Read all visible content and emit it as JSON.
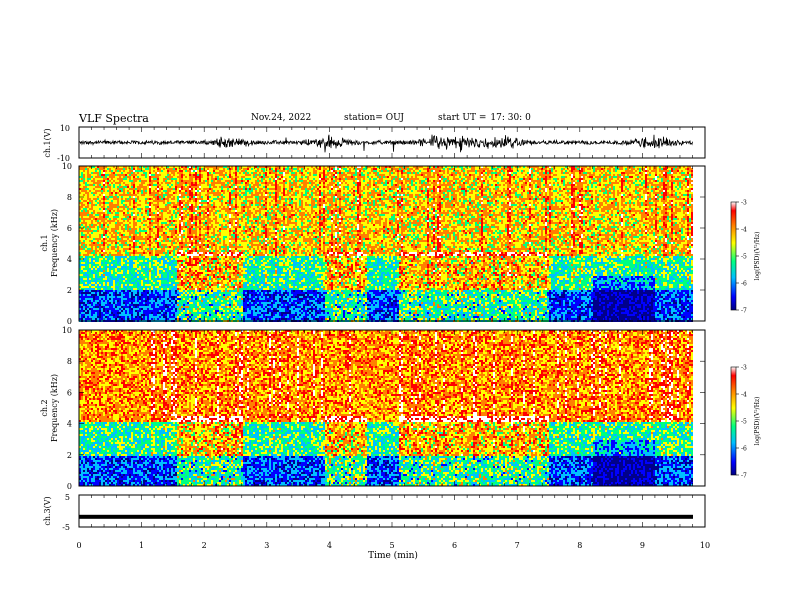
{
  "header": {
    "title": "VLF Spectra",
    "date": "Nov.24, 2022",
    "station": "station= OUJ",
    "start_label": "start  UT  =",
    "start_time": "17: 30: 0"
  },
  "chart_data": [
    {
      "type": "line",
      "name": "ch1-waveform",
      "ylabel": "ch.1(V)",
      "yticks": [
        "10",
        "-10"
      ],
      "ylim": [
        -10,
        10
      ],
      "xlim": [
        0,
        10
      ],
      "burst_times_min": [
        2.4,
        4.0,
        5.7,
        6.2,
        6.8,
        9.2
      ]
    },
    {
      "type": "heatmap",
      "name": "ch1-spectrogram",
      "ylabel_top": "ch.1",
      "ylabel": "Frequency (kHz)",
      "yticks": [
        "0",
        "2",
        "4",
        "6",
        "8",
        "10"
      ],
      "ylim": [
        0,
        10
      ],
      "xlim": [
        0,
        10.5
      ],
      "colorbar": {
        "label": "log(PSD)(V²/Hz)",
        "ticks": [
          "-3",
          "-4",
          "-5",
          "-6",
          "-7"
        ],
        "range": [
          -7,
          -3
        ]
      }
    },
    {
      "type": "heatmap",
      "name": "ch2-spectrogram",
      "ylabel_top": "ch.2",
      "ylabel": "Frequency (kHz)",
      "yticks": [
        "0",
        "2",
        "4",
        "6",
        "8",
        "10"
      ],
      "ylim": [
        0,
        10
      ],
      "xlim": [
        0,
        10.5
      ],
      "colorbar": {
        "label": "log(PSD)(V²/Hz)",
        "ticks": [
          "-3",
          "-4",
          "-5",
          "-6",
          "-7"
        ],
        "range": [
          -7,
          -3
        ]
      }
    },
    {
      "type": "line",
      "name": "ch3-waveform",
      "ylabel": "ch.3(V)",
      "yticks": [
        "5",
        "-5"
      ],
      "ylim": [
        -5,
        5
      ],
      "xlim": [
        0,
        10
      ],
      "constant_value": -1.8
    }
  ],
  "x_axis": {
    "label": "Time (min)",
    "ticks": [
      "0",
      "1",
      "2",
      "3",
      "4",
      "5",
      "6",
      "7",
      "8",
      "9",
      "10"
    ]
  },
  "colors": {
    "colormap": [
      "#00008b",
      "#0000ff",
      "#00bfff",
      "#00ff80",
      "#ffff00",
      "#ff8000",
      "#ff0000",
      "#ffffff"
    ]
  }
}
